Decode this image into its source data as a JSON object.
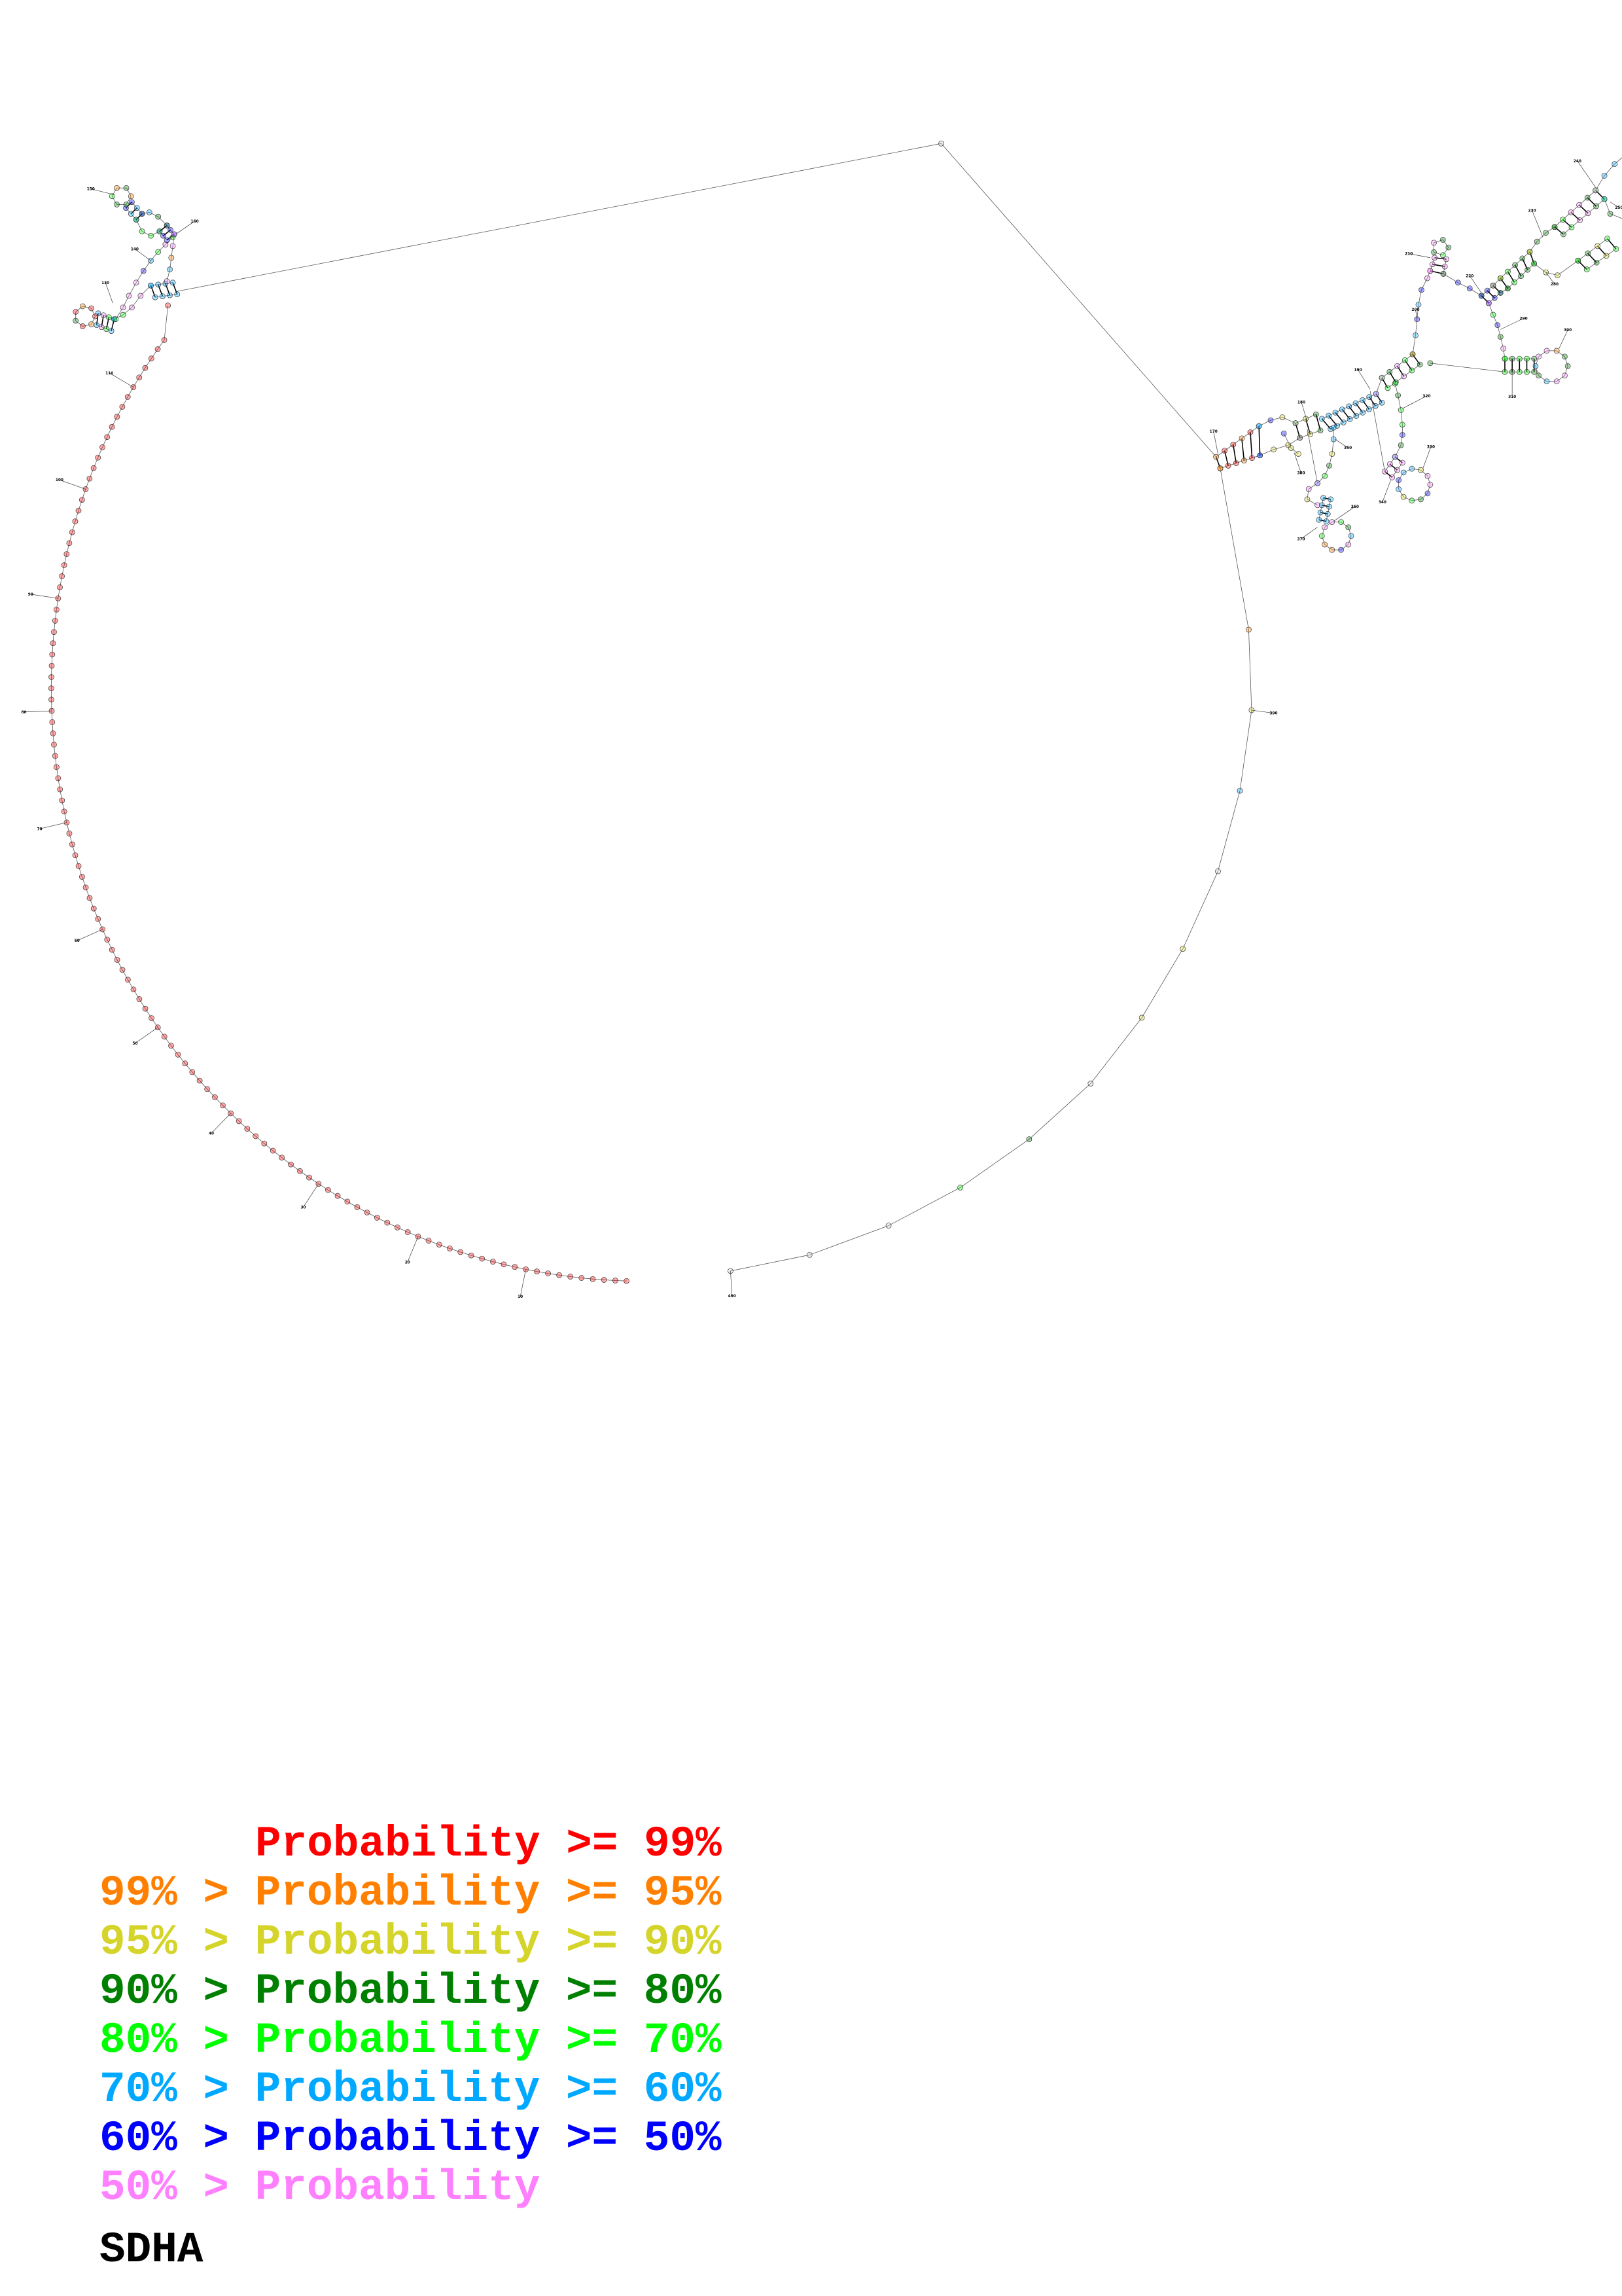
{
  "title": "SDHA",
  "legend": [
    {
      "prefix": "",
      "label": "Probability >= 99%",
      "color": "#ff0000"
    },
    {
      "prefix": "99% > ",
      "label": "Probability >= 95%",
      "color": "#ff8000"
    },
    {
      "prefix": "95% > ",
      "label": "Probability >= 90%",
      "color": "#d4d42a"
    },
    {
      "prefix": "90% > ",
      "label": "Probability >= 80%",
      "color": "#008000"
    },
    {
      "prefix": "80% > ",
      "label": "Probability >= 70%",
      "color": "#00ff00"
    },
    {
      "prefix": "70% > ",
      "label": "Probability >= 60%",
      "color": "#00a8ff"
    },
    {
      "prefix": "60% > ",
      "label": "Probability >= 50%",
      "color": "#0000ff"
    },
    {
      "prefix": "50% > ",
      "label": "Probability",
      "color": "#ff80ff"
    }
  ],
  "structure": {
    "position_labels": [
      "10",
      "20",
      "30",
      "40",
      "50",
      "60",
      "70",
      "80",
      "90",
      "100",
      "110",
      "130",
      "140",
      "150",
      "160",
      "170",
      "180",
      "190",
      "200",
      "210",
      "220",
      "230",
      "240",
      "250",
      "280",
      "290",
      "300",
      "310",
      "320",
      "330",
      "340",
      "350",
      "360",
      "370",
      "380",
      "390",
      "400"
    ]
  }
}
